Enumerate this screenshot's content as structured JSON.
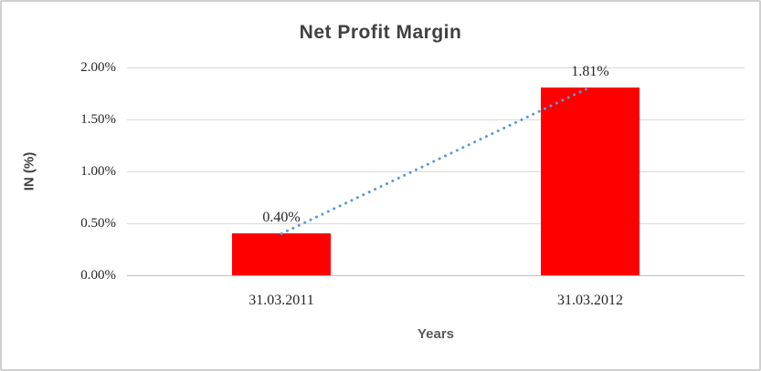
{
  "chart_data": {
    "type": "bar",
    "title": "Net Profit Margin",
    "categories": [
      "31.03.2011",
      "31.03.2012"
    ],
    "values": [
      0.4,
      1.81
    ],
    "data_labels": [
      "0.40%",
      "1.81%"
    ],
    "xlabel": "Years",
    "ylabel": "IN (%)",
    "ylim": [
      0,
      2
    ],
    "yticks": [
      "0.00%",
      "0.50%",
      "1.00%",
      "1.50%",
      "2.00%"
    ],
    "grid": true,
    "legend": "none",
    "trendline_style": "dotted",
    "colors": {
      "bar": "#FF0000",
      "trendline": "#5B9BD5",
      "gridline": "#D9D9D9",
      "axis_line": "#BFBFBF",
      "title_text": "#404040",
      "axis_title_text": "#595959",
      "tick_text": "#262626",
      "border": "#D0D0D0"
    }
  }
}
